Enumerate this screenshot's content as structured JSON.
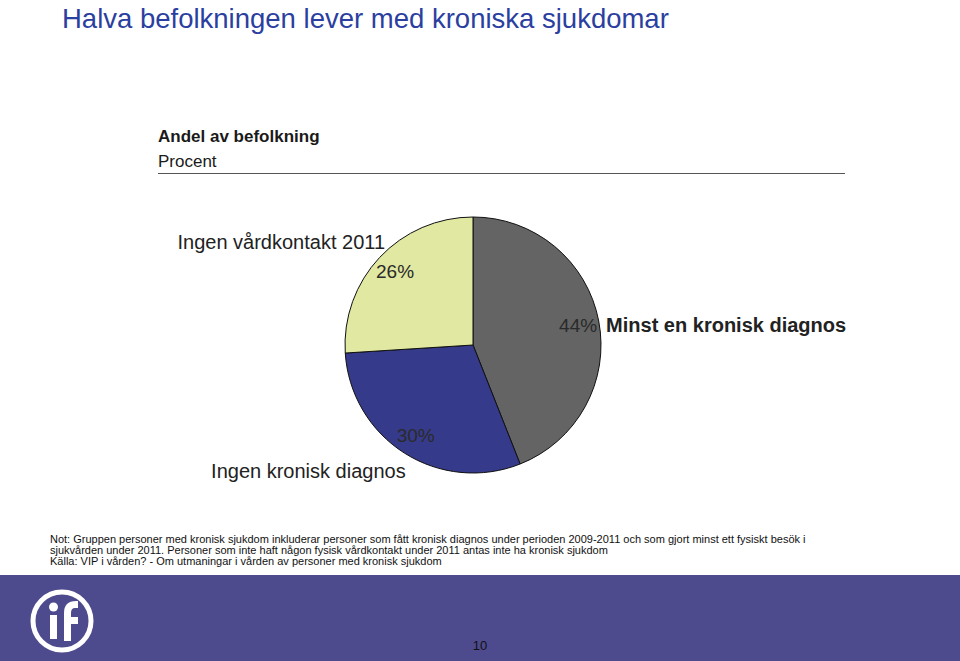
{
  "page": {
    "heading": "Halva befolkningen lever med kroniska sjukdomar",
    "notes": [
      "Not: Gruppen personer med kronisk sjukdom inkluderar personer som fått kronisk diagnos under perioden 2009-2011 och som gjort minst ett fysiskt besök i",
      "sjukvården under 2011. Personer som inte haft någon fysisk vårdkontakt under 2011  antas inte ha kronisk sjukdom"
    ],
    "source": "Källa: VIP i vården? - Om utmaningar i vården av personer med kronisk sjukdom",
    "page_number": 10
  },
  "chart_data": {
    "type": "pie",
    "title": "Andel av befolkning",
    "subtitle": "Procent",
    "categories": [
      "Minst en kronisk diagnos",
      "Ingen kronisk diagnos",
      "Ingen vårdkontakt 2011"
    ],
    "values": [
      44,
      30,
      26
    ],
    "value_labels": [
      "44%",
      "30%",
      "26%"
    ],
    "colors": [
      "#636463",
      "#363a8a",
      "#e0e8a1"
    ],
    "data_labels": true
  }
}
